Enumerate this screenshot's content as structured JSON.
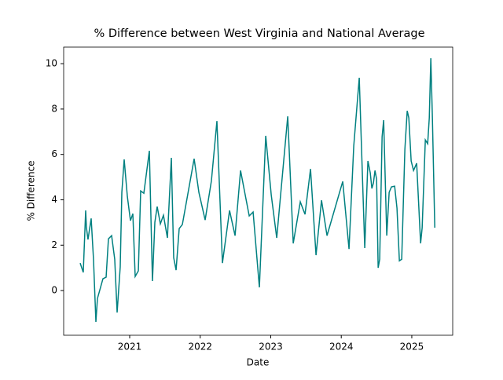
{
  "chart_data": {
    "type": "line",
    "title": "% Difference between West Virginia and National Average",
    "xlabel": "Date",
    "ylabel": "% Difference",
    "x": [
      2020.298,
      2020.342,
      2020.376,
      2020.387,
      2020.409,
      2020.454,
      2020.487,
      2020.521,
      2020.543,
      2020.621,
      2020.666,
      2020.699,
      2020.744,
      2020.788,
      2020.822,
      2020.866,
      2020.889,
      2020.922,
      2020.967,
      2021.011,
      2021.045,
      2021.078,
      2021.123,
      2021.156,
      2021.201,
      2021.279,
      2021.323,
      2021.357,
      2021.39,
      2021.435,
      2021.479,
      2021.535,
      2021.591,
      2021.624,
      2021.658,
      2021.702,
      2021.747,
      2021.914,
      2021.981,
      2022.07,
      2022.159,
      2022.237,
      2022.315,
      2022.416,
      2022.494,
      2022.572,
      2022.695,
      2022.75,
      2022.839,
      2022.929,
      2023.007,
      2023.085,
      2023.241,
      2023.319,
      2023.419,
      2023.486,
      2023.564,
      2023.642,
      2023.72,
      2023.798,
      2024.021,
      2024.11,
      2024.177,
      2024.255,
      2024.333,
      2024.378,
      2024.411,
      2024.434,
      2024.456,
      2024.478,
      2024.501,
      2024.523,
      2024.545,
      2024.579,
      2024.601,
      2024.645,
      2024.679,
      2024.712,
      2024.757,
      2024.79,
      2024.824,
      2024.857,
      2024.902,
      2024.935,
      2024.958,
      2024.991,
      2025.025,
      2025.069,
      2025.125,
      2025.147,
      2025.192,
      2025.225,
      2025.248,
      2025.27,
      2025.292,
      2025.326
    ],
    "series": [
      {
        "name": "% Difference",
        "color": "#008080",
        "values": [
          1.21,
          0.8,
          3.53,
          2.77,
          2.25,
          3.18,
          1.38,
          -1.38,
          -0.35,
          0.52,
          0.59,
          2.28,
          2.42,
          1.38,
          -0.97,
          1.04,
          4.33,
          5.78,
          4.15,
          3.08,
          3.39,
          0.62,
          0.87,
          4.39,
          4.29,
          6.16,
          0.42,
          3.01,
          3.7,
          2.94,
          3.32,
          2.32,
          5.85,
          1.45,
          0.9,
          2.73,
          2.91,
          5.81,
          4.33,
          3.11,
          4.84,
          7.47,
          1.21,
          3.53,
          2.42,
          5.29,
          3.29,
          3.46,
          0.14,
          6.82,
          4.22,
          2.32,
          7.68,
          2.08,
          3.91,
          3.36,
          5.36,
          1.56,
          3.98,
          2.42,
          4.81,
          1.83,
          6.37,
          9.38,
          1.87,
          5.71,
          5.19,
          4.5,
          4.74,
          5.29,
          4.91,
          1.0,
          1.38,
          6.78,
          7.51,
          2.42,
          4.33,
          4.57,
          4.6,
          3.63,
          1.31,
          1.38,
          6.23,
          7.92,
          7.61,
          5.71,
          5.29,
          5.61,
          2.08,
          2.77,
          6.64,
          6.47,
          7.61,
          10.24,
          7.61,
          2.77
        ]
      }
    ],
    "xlim": [
      2020.064,
      2025.58
    ],
    "xticks": [
      2021,
      2022,
      2023,
      2024,
      2025
    ],
    "ylim": [
      -1.97,
      10.73
    ],
    "yticks": [
      0,
      2,
      4,
      6,
      8,
      10
    ],
    "grid": false
  }
}
